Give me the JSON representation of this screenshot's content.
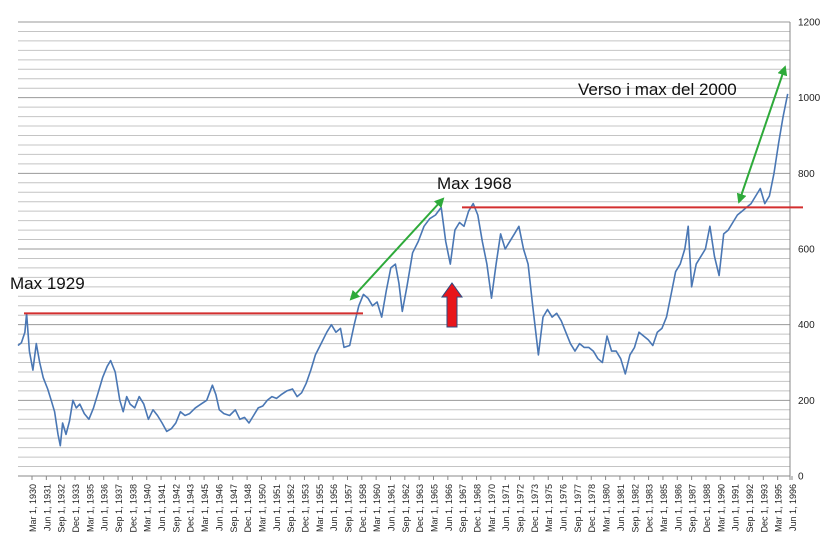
{
  "chart_data": {
    "type": "line",
    "title": "",
    "xlabel": "",
    "ylabel": "",
    "ylim": [
      0,
      1200
    ],
    "yticks": [
      "0",
      "200",
      "400",
      "600",
      "800",
      "1000",
      "1200"
    ],
    "y_axis_side": "right",
    "grid": "horizontal",
    "x_tick_labels": [
      "Mar 1, 1930",
      "Jun 1, 1931",
      "Sep 1, 1932",
      "Dec 1, 1933",
      "Mar 1, 1935",
      "Jun 1, 1936",
      "Sep 1, 1937",
      "Dec 1, 1938",
      "Mar 1, 1940",
      "Jun 1, 1941",
      "Sep 1, 1942",
      "Dec 1, 1943",
      "Mar 1, 1945",
      "Jun 1, 1946",
      "Sep 1, 1947",
      "Dec 1, 1948",
      "Mar 1, 1950",
      "Jun 1, 1951",
      "Sep 1, 1952",
      "Dec 1, 1953",
      "Mar 1, 1955",
      "Jun 1, 1956",
      "Sep 1, 1957",
      "Dec 1, 1958",
      "Mar 1, 1960",
      "Jun 1, 1961",
      "Sep 1, 1962",
      "Dec 1, 1963",
      "Mar 1, 1965",
      "Jun 1, 1966",
      "Sep 1, 1967",
      "Dec 1, 1968",
      "Mar 1, 1970",
      "Jun 1, 1971",
      "Sep 1, 1972",
      "Dec 1, 1973",
      "Mar 1, 1975",
      "Jun 1, 1976",
      "Sep 1, 1977",
      "Dec 1, 1978",
      "Mar 1, 1980",
      "Jun 1, 1981",
      "Sep 1, 1982",
      "Dec 1, 1983",
      "Mar 1, 1985",
      "Jun 1, 1986",
      "Sep 1, 1987",
      "Dec 1, 1988",
      "Mar 1, 1990",
      "Jun 1, 1991",
      "Sep 1, 1992",
      "Dec 1, 1993",
      "Mar 1, 1995",
      "Jun 1, 1996"
    ],
    "x_range": [
      1929.0,
      1996.5
    ],
    "series": [
      {
        "name": "",
        "color": "#4a77b4",
        "points": [
          [
            1929.0,
            345
          ],
          [
            1929.3,
            352
          ],
          [
            1929.6,
            380
          ],
          [
            1929.75,
            430
          ],
          [
            1930.0,
            330
          ],
          [
            1930.3,
            280
          ],
          [
            1930.6,
            350
          ],
          [
            1930.9,
            300
          ],
          [
            1931.2,
            260
          ],
          [
            1931.6,
            230
          ],
          [
            1931.9,
            200
          ],
          [
            1932.2,
            170
          ],
          [
            1932.5,
            110
          ],
          [
            1932.7,
            80
          ],
          [
            1932.9,
            140
          ],
          [
            1933.2,
            110
          ],
          [
            1933.5,
            145
          ],
          [
            1933.8,
            200
          ],
          [
            1934.1,
            180
          ],
          [
            1934.4,
            190
          ],
          [
            1934.8,
            165
          ],
          [
            1935.2,
            150
          ],
          [
            1935.6,
            180
          ],
          [
            1936.0,
            220
          ],
          [
            1936.4,
            260
          ],
          [
            1936.8,
            290
          ],
          [
            1937.1,
            305
          ],
          [
            1937.5,
            275
          ],
          [
            1937.9,
            200
          ],
          [
            1938.2,
            170
          ],
          [
            1938.5,
            210
          ],
          [
            1938.8,
            190
          ],
          [
            1939.2,
            180
          ],
          [
            1939.6,
            210
          ],
          [
            1940.0,
            190
          ],
          [
            1940.4,
            150
          ],
          [
            1940.8,
            175
          ],
          [
            1941.2,
            160
          ],
          [
            1941.6,
            140
          ],
          [
            1942.0,
            118
          ],
          [
            1942.4,
            125
          ],
          [
            1942.8,
            140
          ],
          [
            1943.2,
            170
          ],
          [
            1943.6,
            160
          ],
          [
            1944.0,
            165
          ],
          [
            1944.5,
            180
          ],
          [
            1945.0,
            190
          ],
          [
            1945.5,
            200
          ],
          [
            1946.0,
            240
          ],
          [
            1946.3,
            215
          ],
          [
            1946.6,
            175
          ],
          [
            1947.0,
            165
          ],
          [
            1947.5,
            160
          ],
          [
            1948.0,
            175
          ],
          [
            1948.4,
            150
          ],
          [
            1948.8,
            155
          ],
          [
            1949.2,
            140
          ],
          [
            1949.6,
            160
          ],
          [
            1950.0,
            180
          ],
          [
            1950.4,
            185
          ],
          [
            1950.8,
            200
          ],
          [
            1951.2,
            210
          ],
          [
            1951.6,
            205
          ],
          [
            1952.0,
            215
          ],
          [
            1952.5,
            225
          ],
          [
            1953.0,
            230
          ],
          [
            1953.4,
            210
          ],
          [
            1953.8,
            220
          ],
          [
            1954.2,
            245
          ],
          [
            1954.6,
            280
          ],
          [
            1955.0,
            320
          ],
          [
            1955.5,
            350
          ],
          [
            1956.0,
            380
          ],
          [
            1956.4,
            400
          ],
          [
            1956.8,
            380
          ],
          [
            1957.2,
            390
          ],
          [
            1957.5,
            340
          ],
          [
            1958.0,
            345
          ],
          [
            1958.4,
            400
          ],
          [
            1958.8,
            450
          ],
          [
            1959.2,
            480
          ],
          [
            1959.6,
            470
          ],
          [
            1960.0,
            450
          ],
          [
            1960.4,
            460
          ],
          [
            1960.8,
            420
          ],
          [
            1961.2,
            490
          ],
          [
            1961.6,
            550
          ],
          [
            1962.0,
            560
          ],
          [
            1962.3,
            510
          ],
          [
            1962.6,
            435
          ],
          [
            1963.0,
            500
          ],
          [
            1963.5,
            590
          ],
          [
            1964.0,
            620
          ],
          [
            1964.5,
            660
          ],
          [
            1965.0,
            680
          ],
          [
            1965.5,
            690
          ],
          [
            1966.0,
            710
          ],
          [
            1966.4,
            620
          ],
          [
            1966.8,
            560
          ],
          [
            1967.2,
            650
          ],
          [
            1967.6,
            670
          ],
          [
            1968.0,
            660
          ],
          [
            1968.4,
            700
          ],
          [
            1968.8,
            720
          ],
          [
            1969.2,
            690
          ],
          [
            1969.6,
            620
          ],
          [
            1970.0,
            560
          ],
          [
            1970.4,
            470
          ],
          [
            1970.8,
            560
          ],
          [
            1971.2,
            640
          ],
          [
            1971.6,
            600
          ],
          [
            1972.0,
            620
          ],
          [
            1972.4,
            640
          ],
          [
            1972.8,
            660
          ],
          [
            1973.2,
            600
          ],
          [
            1973.6,
            560
          ],
          [
            1974.0,
            450
          ],
          [
            1974.5,
            320
          ],
          [
            1974.9,
            420
          ],
          [
            1975.3,
            440
          ],
          [
            1975.7,
            420
          ],
          [
            1976.1,
            430
          ],
          [
            1976.5,
            410
          ],
          [
            1976.9,
            380
          ],
          [
            1977.3,
            350
          ],
          [
            1977.7,
            330
          ],
          [
            1978.1,
            350
          ],
          [
            1978.5,
            340
          ],
          [
            1978.9,
            340
          ],
          [
            1979.3,
            330
          ],
          [
            1979.7,
            310
          ],
          [
            1980.1,
            300
          ],
          [
            1980.5,
            370
          ],
          [
            1980.9,
            330
          ],
          [
            1981.3,
            330
          ],
          [
            1981.7,
            310
          ],
          [
            1982.1,
            270
          ],
          [
            1982.5,
            320
          ],
          [
            1982.9,
            340
          ],
          [
            1983.3,
            380
          ],
          [
            1983.7,
            370
          ],
          [
            1984.1,
            360
          ],
          [
            1984.5,
            345
          ],
          [
            1984.9,
            380
          ],
          [
            1985.3,
            390
          ],
          [
            1985.7,
            420
          ],
          [
            1986.1,
            480
          ],
          [
            1986.5,
            540
          ],
          [
            1986.9,
            560
          ],
          [
            1987.3,
            600
          ],
          [
            1987.6,
            660
          ],
          [
            1987.9,
            500
          ],
          [
            1988.3,
            560
          ],
          [
            1988.7,
            580
          ],
          [
            1989.1,
            600
          ],
          [
            1989.5,
            660
          ],
          [
            1989.9,
            580
          ],
          [
            1990.3,
            530
          ],
          [
            1990.7,
            640
          ],
          [
            1991.1,
            650
          ],
          [
            1991.5,
            670
          ],
          [
            1991.9,
            690
          ],
          [
            1992.3,
            700
          ],
          [
            1992.7,
            710
          ],
          [
            1993.1,
            720
          ],
          [
            1993.5,
            740
          ],
          [
            1993.9,
            760
          ],
          [
            1994.3,
            720
          ],
          [
            1994.7,
            740
          ],
          [
            1995.1,
            800
          ],
          [
            1995.5,
            880
          ],
          [
            1995.9,
            950
          ],
          [
            1996.3,
            1010
          ]
        ]
      }
    ]
  },
  "reference_lines": {
    "max_1929": 430,
    "max_1968": 710,
    "color": "#d32f2f"
  },
  "annotations": [
    {
      "text": "Max 1929"
    },
    {
      "text": "Max 1968"
    },
    {
      "text": "Verso i max del 2000"
    }
  ],
  "arrows": {
    "green_color": "#2eaa3a",
    "red_color": "#e8151b"
  }
}
